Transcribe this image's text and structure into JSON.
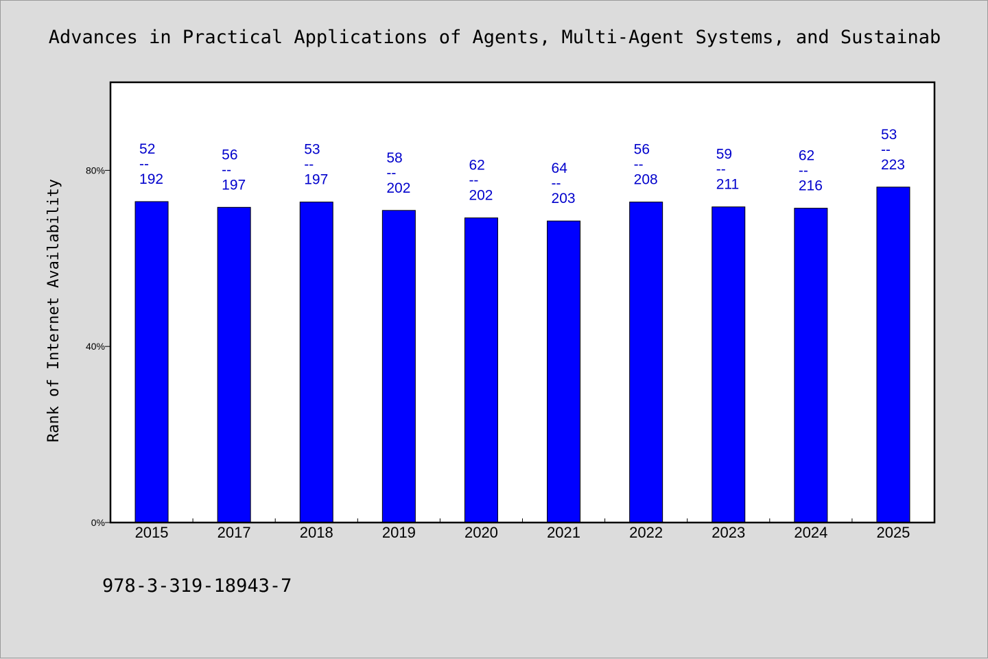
{
  "title": "Advances in Practical Applications of Agents, Multi-Agent Systems, and Sustainab",
  "footer_text": "978-3-319-18943-7",
  "colors": {
    "bar": "#0000ff",
    "data_label": "#0000cc",
    "background": "#dcdcdc",
    "plot_background": "#ffffff"
  },
  "chart_data": {
    "type": "bar",
    "ylabel": "Rank of Internet Availability",
    "categories": [
      "2015",
      "2017",
      "2018",
      "2019",
      "2020",
      "2021",
      "2022",
      "2023",
      "2024",
      "2025"
    ],
    "values": [
      72.9,
      71.6,
      72.8,
      70.9,
      69.2,
      68.5,
      72.8,
      71.7,
      71.4,
      76.2
    ],
    "bar_labels": [
      [
        "52",
        "--",
        "192"
      ],
      [
        "56",
        "--",
        "197"
      ],
      [
        "53",
        "--",
        "197"
      ],
      [
        "58",
        "--",
        "202"
      ],
      [
        "62",
        "--",
        "202"
      ],
      [
        "64",
        "--",
        "203"
      ],
      [
        "56",
        "--",
        "208"
      ],
      [
        "59",
        "--",
        "211"
      ],
      [
        "62",
        "--",
        "216"
      ],
      [
        "53",
        "--",
        "223"
      ]
    ],
    "ylim": [
      0,
      100
    ],
    "yticks": [
      0,
      40,
      80
    ],
    "ytick_labels": [
      "0%",
      "40%",
      "80%"
    ],
    "grid": false,
    "legend": "none"
  }
}
